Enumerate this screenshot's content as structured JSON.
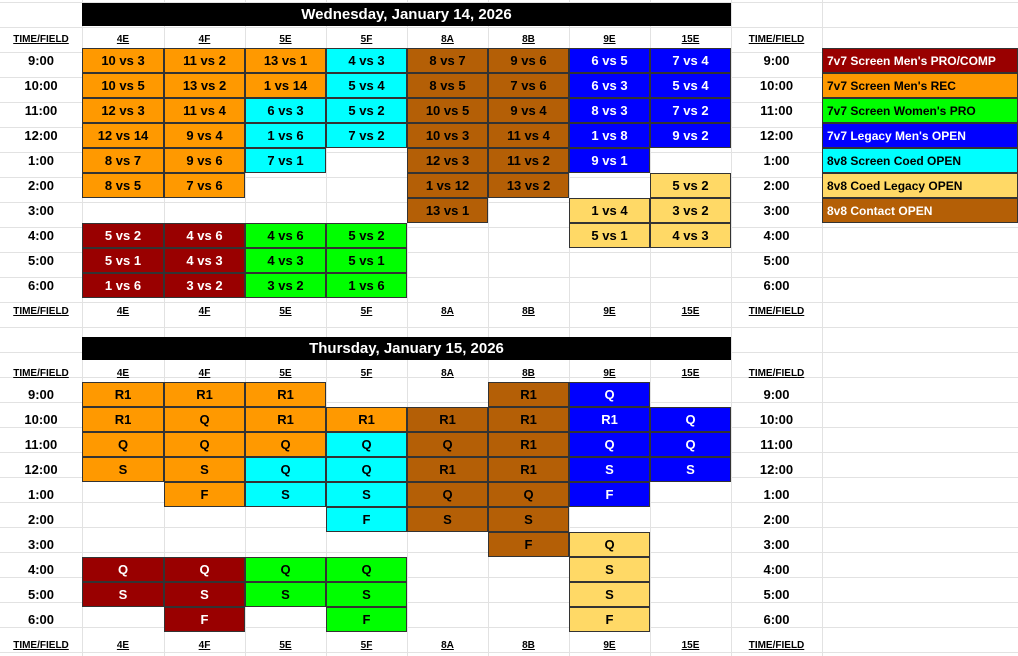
{
  "colors": {
    "pro_comp": "#990000",
    "mens_rec": "#ff9900",
    "womens_pro": "#00ff00",
    "legacy_mens": "#0000ff",
    "coed_open": "#00ffff",
    "coed_legacy": "#ffd966",
    "contact": "#b45f06"
  },
  "white_text_keys": [
    "pro_comp",
    "legacy_mens"
  ],
  "legend_text_colors": {
    "pro_comp": "#ffffff",
    "mens_rec": "#000000",
    "womens_pro": "#000000",
    "legacy_mens": "#ffffff",
    "coed_open": "#000000",
    "coed_legacy": "#000000",
    "contact": "#ffffff"
  },
  "legend": [
    {
      "key": "pro_comp",
      "label": "7v7 Screen Men's PRO/COMP"
    },
    {
      "key": "mens_rec",
      "label": "7v7 Screen Men's REC"
    },
    {
      "key": "womens_pro",
      "label": "7v7 Screen Women's PRO"
    },
    {
      "key": "legacy_mens",
      "label": "7v7 Legacy Men's OPEN"
    },
    {
      "key": "coed_open",
      "label": "8v8 Screen Coed OPEN"
    },
    {
      "key": "coed_legacy",
      "label": "8v8 Coed Legacy OPEN"
    },
    {
      "key": "contact",
      "label": "8v8 Contact OPEN"
    }
  ],
  "time_field_label": "TIME/FIELD",
  "fields": [
    "4E",
    "4F",
    "5E",
    "5F",
    "8A",
    "8B",
    "9E",
    "15E"
  ],
  "times": [
    "9:00",
    "10:00",
    "11:00",
    "12:00",
    "1:00",
    "2:00",
    "3:00",
    "4:00",
    "5:00",
    "6:00"
  ],
  "days": [
    {
      "title": "Wednesday, January 14, 2026",
      "grid": [
        [
          [
            "mens_rec",
            "10 vs 3"
          ],
          [
            "mens_rec",
            "11 vs 2"
          ],
          [
            "mens_rec",
            "13 vs 1"
          ],
          [
            "coed_open",
            "4 vs 3"
          ],
          [
            "contact",
            "8 vs 7"
          ],
          [
            "contact",
            "9 vs 6"
          ],
          [
            "legacy_mens",
            "6 vs 5"
          ],
          [
            "legacy_mens",
            "7 vs 4"
          ]
        ],
        [
          [
            "mens_rec",
            "10 vs 5"
          ],
          [
            "mens_rec",
            "13 vs 2"
          ],
          [
            "mens_rec",
            "1 vs 14"
          ],
          [
            "coed_open",
            "5 vs 4"
          ],
          [
            "contact",
            "8 vs 5"
          ],
          [
            "contact",
            "7 vs 6"
          ],
          [
            "legacy_mens",
            "6 vs 3"
          ],
          [
            "legacy_mens",
            "5 vs 4"
          ]
        ],
        [
          [
            "mens_rec",
            "12 vs 3"
          ],
          [
            "mens_rec",
            "11 vs 4"
          ],
          [
            "coed_open",
            "6 vs 3"
          ],
          [
            "coed_open",
            "5 vs 2"
          ],
          [
            "contact",
            "10 vs 5"
          ],
          [
            "contact",
            "9 vs 4"
          ],
          [
            "legacy_mens",
            "8 vs 3"
          ],
          [
            "legacy_mens",
            "7 vs 2"
          ]
        ],
        [
          [
            "mens_rec",
            "12 vs 14"
          ],
          [
            "mens_rec",
            "9 vs 4"
          ],
          [
            "coed_open",
            "1 vs 6"
          ],
          [
            "coed_open",
            "7 vs 2"
          ],
          [
            "contact",
            "10 vs 3"
          ],
          [
            "contact",
            "11 vs 4"
          ],
          [
            "legacy_mens",
            "1 vs 8"
          ],
          [
            "legacy_mens",
            "9 vs 2"
          ]
        ],
        [
          [
            "mens_rec",
            "8 vs 7"
          ],
          [
            "mens_rec",
            "9 vs 6"
          ],
          [
            "coed_open",
            "7 vs 1"
          ],
          null,
          [
            "contact",
            "12 vs 3"
          ],
          [
            "contact",
            "11 vs 2"
          ],
          [
            "legacy_mens",
            "9 vs 1"
          ],
          null
        ],
        [
          [
            "mens_rec",
            "8 vs 5"
          ],
          [
            "mens_rec",
            "7 vs 6"
          ],
          null,
          null,
          [
            "contact",
            "1 vs 12"
          ],
          [
            "contact",
            "13 vs 2"
          ],
          null,
          [
            "coed_legacy",
            "5 vs 2"
          ]
        ],
        [
          null,
          null,
          null,
          null,
          [
            "contact",
            "13 vs 1"
          ],
          null,
          [
            "coed_legacy",
            "1 vs 4"
          ],
          [
            "coed_legacy",
            "3 vs 2"
          ]
        ],
        [
          [
            "pro_comp",
            "5 vs 2"
          ],
          [
            "pro_comp",
            "4 vs 6"
          ],
          [
            "womens_pro",
            "4 vs 6"
          ],
          [
            "womens_pro",
            "5 vs 2"
          ],
          null,
          null,
          [
            "coed_legacy",
            "5 vs 1"
          ],
          [
            "coed_legacy",
            "4 vs 3"
          ]
        ],
        [
          [
            "pro_comp",
            "5 vs 1"
          ],
          [
            "pro_comp",
            "4 vs 3"
          ],
          [
            "womens_pro",
            "4 vs 3"
          ],
          [
            "womens_pro",
            "5 vs 1"
          ],
          null,
          null,
          null,
          null
        ],
        [
          [
            "pro_comp",
            "1 vs 6"
          ],
          [
            "pro_comp",
            "3 vs 2"
          ],
          [
            "womens_pro",
            "3 vs 2"
          ],
          [
            "womens_pro",
            "1 vs 6"
          ],
          null,
          null,
          null,
          null
        ]
      ]
    },
    {
      "title": "Thursday, January 15, 2026",
      "grid": [
        [
          [
            "mens_rec",
            "R1"
          ],
          [
            "mens_rec",
            "R1"
          ],
          [
            "mens_rec",
            "R1"
          ],
          null,
          null,
          [
            "contact",
            "R1"
          ],
          [
            "legacy_mens",
            "Q"
          ],
          null
        ],
        [
          [
            "mens_rec",
            "R1"
          ],
          [
            "mens_rec",
            "Q"
          ],
          [
            "mens_rec",
            "R1"
          ],
          [
            "mens_rec",
            "R1"
          ],
          [
            "contact",
            "R1"
          ],
          [
            "contact",
            "R1"
          ],
          [
            "legacy_mens",
            "R1"
          ],
          [
            "legacy_mens",
            "Q"
          ]
        ],
        [
          [
            "mens_rec",
            "Q"
          ],
          [
            "mens_rec",
            "Q"
          ],
          [
            "mens_rec",
            "Q"
          ],
          [
            "coed_open",
            "Q"
          ],
          [
            "contact",
            "Q"
          ],
          [
            "contact",
            "R1"
          ],
          [
            "legacy_mens",
            "Q"
          ],
          [
            "legacy_mens",
            "Q"
          ]
        ],
        [
          [
            "mens_rec",
            "S"
          ],
          [
            "mens_rec",
            "S"
          ],
          [
            "coed_open",
            "Q"
          ],
          [
            "coed_open",
            "Q"
          ],
          [
            "contact",
            "R1"
          ],
          [
            "contact",
            "R1"
          ],
          [
            "legacy_mens",
            "S"
          ],
          [
            "legacy_mens",
            "S"
          ]
        ],
        [
          null,
          [
            "mens_rec",
            "F"
          ],
          [
            "coed_open",
            "S"
          ],
          [
            "coed_open",
            "S"
          ],
          [
            "contact",
            "Q"
          ],
          [
            "contact",
            "Q"
          ],
          [
            "legacy_mens",
            "F"
          ],
          null
        ],
        [
          null,
          null,
          null,
          [
            "coed_open",
            "F"
          ],
          [
            "contact",
            "S"
          ],
          [
            "contact",
            "S"
          ],
          null,
          null
        ],
        [
          null,
          null,
          null,
          null,
          null,
          [
            "contact",
            "F"
          ],
          [
            "coed_legacy",
            "Q"
          ],
          null
        ],
        [
          [
            "pro_comp",
            "Q"
          ],
          [
            "pro_comp",
            "Q"
          ],
          [
            "womens_pro",
            "Q"
          ],
          [
            "womens_pro",
            "Q"
          ],
          null,
          null,
          [
            "coed_legacy",
            "S"
          ],
          null
        ],
        [
          [
            "pro_comp",
            "S"
          ],
          [
            "pro_comp",
            "S"
          ],
          [
            "womens_pro",
            "S"
          ],
          [
            "womens_pro",
            "S"
          ],
          null,
          null,
          [
            "coed_legacy",
            "S"
          ],
          null
        ],
        [
          null,
          [
            "pro_comp",
            "F"
          ],
          null,
          [
            "womens_pro",
            "F"
          ],
          null,
          null,
          [
            "coed_legacy",
            "F"
          ],
          null
        ]
      ]
    }
  ]
}
